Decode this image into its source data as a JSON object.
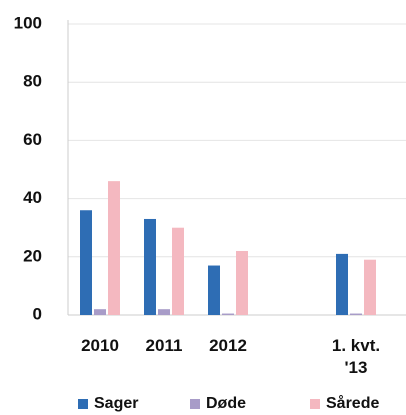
{
  "chart_data": {
    "type": "bar",
    "categories": [
      "2010",
      "2011",
      "2012",
      null,
      "1. kvt. '13"
    ],
    "series": [
      {
        "name": "Sager",
        "color": "#2e6db4",
        "values": [
          36,
          33,
          17,
          null,
          21
        ]
      },
      {
        "name": "Døde",
        "color": "#a89cc8",
        "values": [
          2,
          2,
          0.5,
          null,
          0.5
        ]
      },
      {
        "name": "Sårede",
        "color": "#f4b8c0",
        "values": [
          46,
          30,
          22,
          null,
          19
        ]
      }
    ],
    "ylim": [
      0,
      100
    ],
    "yticks": [
      0,
      20,
      40,
      60,
      80,
      100
    ],
    "grid": true,
    "legend": "bottom"
  }
}
